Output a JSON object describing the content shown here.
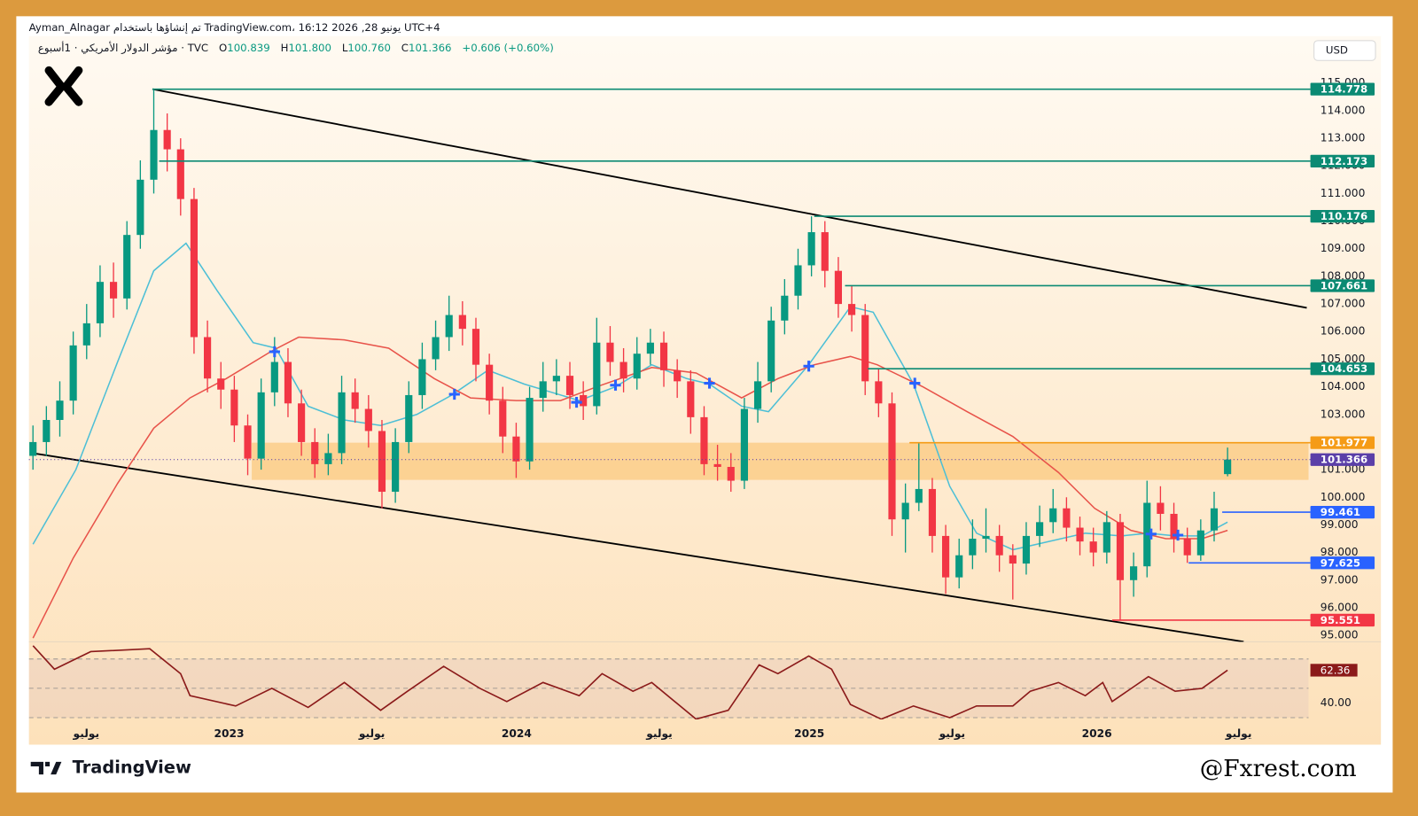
{
  "header": {
    "author_line": "Ayman_Alnagar تم إنشاؤها باستخدام TradingView.com، 16:12 2026 ,28 يونيو UTC+4",
    "symbol": "مؤشر الدولار الأمريكي · 1أسبوع · TVC",
    "ohlc_labels": [
      "O",
      "H",
      "L",
      "C"
    ],
    "ohlc_values": [
      "100.839",
      "101.800",
      "100.760",
      "101.366"
    ],
    "change": "+0.606 (+0.60%)",
    "currency": "USD"
  },
  "footer": {
    "brand": "TradingView",
    "watermark": "@Fxrest.com"
  },
  "chart_data": [
    {
      "type": "candlestick",
      "up_color": "#089981",
      "down_color": "#f23645",
      "xlim": [
        -0.3,
        94.9
      ],
      "ylim": [
        94.8,
        116.7
      ],
      "yticks": [
        {
          "value": 95,
          "label": "95.000"
        },
        {
          "value": 96,
          "label": "96.000"
        },
        {
          "value": 97,
          "label": "97.000"
        },
        {
          "value": 98,
          "label": "98.000"
        },
        {
          "value": 99,
          "label": "99.000"
        },
        {
          "value": 100,
          "label": "100.000"
        },
        {
          "value": 101,
          "label": "101.000"
        },
        {
          "value": 102,
          "label": "102.000"
        },
        {
          "value": 103,
          "label": "103.000"
        },
        {
          "value": 104,
          "label": "104.000"
        },
        {
          "value": 105,
          "label": "105.000"
        },
        {
          "value": 106,
          "label": "106.000"
        },
        {
          "value": 107,
          "label": "107.000"
        },
        {
          "value": 108,
          "label": "108.000"
        },
        {
          "value": 109,
          "label": "109.000"
        },
        {
          "value": 110,
          "label": "110.000"
        },
        {
          "value": 111,
          "label": "111.000"
        },
        {
          "value": 112,
          "label": "112.000"
        },
        {
          "value": 113,
          "label": "113.000"
        },
        {
          "value": 114,
          "label": "114.000"
        },
        {
          "value": 115,
          "label": "115.000"
        }
      ],
      "candles": [
        [
          101.5,
          102.6,
          101.0,
          102.0
        ],
        [
          102.0,
          103.3,
          101.5,
          102.8
        ],
        [
          102.8,
          104.2,
          102.2,
          103.5
        ],
        [
          103.5,
          106.0,
          103.0,
          105.5
        ],
        [
          105.5,
          107.0,
          105.0,
          106.3
        ],
        [
          106.3,
          108.4,
          105.8,
          107.8
        ],
        [
          107.8,
          108.5,
          106.5,
          107.2
        ],
        [
          107.2,
          110.0,
          106.8,
          109.5
        ],
        [
          109.5,
          112.2,
          109.0,
          111.5
        ],
        [
          111.5,
          114.778,
          111.0,
          113.3
        ],
        [
          113.3,
          113.9,
          111.8,
          112.6
        ],
        [
          112.6,
          113.0,
          110.2,
          110.8
        ],
        [
          110.8,
          111.2,
          105.2,
          105.8
        ],
        [
          105.8,
          106.4,
          103.8,
          104.3
        ],
        [
          104.3,
          104.9,
          103.2,
          103.9
        ],
        [
          103.9,
          104.4,
          102.0,
          102.6
        ],
        [
          102.6,
          103.0,
          100.8,
          101.4
        ],
        [
          101.4,
          104.3,
          101.0,
          103.8
        ],
        [
          103.8,
          105.8,
          103.3,
          104.9
        ],
        [
          104.9,
          105.4,
          102.9,
          103.4
        ],
        [
          103.4,
          103.9,
          101.5,
          102.0
        ],
        [
          102.0,
          102.5,
          100.7,
          101.2
        ],
        [
          101.2,
          102.3,
          100.8,
          101.6
        ],
        [
          101.6,
          104.4,
          101.2,
          103.8
        ],
        [
          103.8,
          104.3,
          102.7,
          103.2
        ],
        [
          103.2,
          103.7,
          101.8,
          102.4
        ],
        [
          102.4,
          102.8,
          99.6,
          100.2
        ],
        [
          100.2,
          102.5,
          99.8,
          102.0
        ],
        [
          102.0,
          104.2,
          101.6,
          103.7
        ],
        [
          103.7,
          105.6,
          103.2,
          105.0
        ],
        [
          105.0,
          106.4,
          104.6,
          105.8
        ],
        [
          105.8,
          107.3,
          105.3,
          106.6
        ],
        [
          106.6,
          107.1,
          105.5,
          106.1
        ],
        [
          106.1,
          106.5,
          104.2,
          104.8
        ],
        [
          104.8,
          105.2,
          103.0,
          103.5
        ],
        [
          103.5,
          104.0,
          101.6,
          102.2
        ],
        [
          102.2,
          102.7,
          100.7,
          101.3
        ],
        [
          101.3,
          104.0,
          101.0,
          103.6
        ],
        [
          103.6,
          104.9,
          103.1,
          104.2
        ],
        [
          104.2,
          105.0,
          103.7,
          104.4
        ],
        [
          104.4,
          104.9,
          103.2,
          103.7
        ],
        [
          103.7,
          104.2,
          102.8,
          103.3
        ],
        [
          103.3,
          106.5,
          103.0,
          105.6
        ],
        [
          105.6,
          106.2,
          104.4,
          104.9
        ],
        [
          104.9,
          105.4,
          103.8,
          104.3
        ],
        [
          104.3,
          105.8,
          103.9,
          105.2
        ],
        [
          105.2,
          106.1,
          104.8,
          105.6
        ],
        [
          105.6,
          106.0,
          104.0,
          104.6
        ],
        [
          104.6,
          105.0,
          103.6,
          104.2
        ],
        [
          104.2,
          104.6,
          102.3,
          102.9
        ],
        [
          102.9,
          103.3,
          100.8,
          101.2
        ],
        [
          101.2,
          101.9,
          100.6,
          101.1
        ],
        [
          101.1,
          101.6,
          100.2,
          100.6
        ],
        [
          100.6,
          103.6,
          100.3,
          103.2
        ],
        [
          103.2,
          104.9,
          102.7,
          104.2
        ],
        [
          104.2,
          106.9,
          103.8,
          106.4
        ],
        [
          106.4,
          107.9,
          105.9,
          107.3
        ],
        [
          107.3,
          109.0,
          106.8,
          108.4
        ],
        [
          108.4,
          110.176,
          108.0,
          109.6
        ],
        [
          109.6,
          110.0,
          107.6,
          108.2
        ],
        [
          108.2,
          108.7,
          106.5,
          107.0
        ],
        [
          107.0,
          107.661,
          106.0,
          106.6
        ],
        [
          106.6,
          107.0,
          103.7,
          104.2
        ],
        [
          104.2,
          104.653,
          102.9,
          103.4
        ],
        [
          103.4,
          103.8,
          98.6,
          99.2
        ],
        [
          99.2,
          100.5,
          98.0,
          99.8
        ],
        [
          99.8,
          101.977,
          99.5,
          100.3
        ],
        [
          100.3,
          100.7,
          98.0,
          98.6
        ],
        [
          98.6,
          99.0,
          96.5,
          97.1
        ],
        [
          97.1,
          98.5,
          96.7,
          97.9
        ],
        [
          97.9,
          99.2,
          97.4,
          98.5
        ],
        [
          98.5,
          99.6,
          98.0,
          98.6
        ],
        [
          98.6,
          99.0,
          97.3,
          97.9
        ],
        [
          97.9,
          98.3,
          96.3,
          97.6
        ],
        [
          97.6,
          99.1,
          97.2,
          98.6
        ],
        [
          98.6,
          99.7,
          98.2,
          99.1
        ],
        [
          99.1,
          100.3,
          98.7,
          99.6
        ],
        [
          99.6,
          100.0,
          98.4,
          98.9
        ],
        [
          98.9,
          99.3,
          97.9,
          98.4
        ],
        [
          98.4,
          98.9,
          97.5,
          98.0
        ],
        [
          98.0,
          99.5,
          97.6,
          99.1
        ],
        [
          99.1,
          99.4,
          95.551,
          97.0
        ],
        [
          97.0,
          98.0,
          96.4,
          97.5
        ],
        [
          97.5,
          100.6,
          97.1,
          99.8
        ],
        [
          99.8,
          100.4,
          98.8,
          99.4
        ],
        [
          99.4,
          99.8,
          98.0,
          98.5
        ],
        [
          98.5,
          98.9,
          97.625,
          97.9
        ],
        [
          97.9,
          99.2,
          97.7,
          98.8
        ],
        [
          98.8,
          100.2,
          98.4,
          99.6
        ],
        [
          100.839,
          101.8,
          100.76,
          101.366
        ]
      ],
      "lines": [
        {
          "color": "#4cbfd6",
          "x": [
            0,
            3.2,
            6.3,
            9.0,
            11.4,
            13.7,
            16.4,
            18.1,
            20.5,
            23.2,
            25.9,
            28.6,
            31.2,
            33.9,
            36.6,
            40.7,
            43.4,
            46.1,
            48.7,
            50.4,
            52.8,
            54.8,
            57.8,
            60.9,
            62.6,
            65.6,
            68.3,
            70.3,
            73.0,
            75.7,
            78.4,
            81.1,
            83.1,
            85.1,
            87.1,
            89.0
          ],
          "values": [
            98.3,
            101.0,
            104.9,
            108.2,
            109.2,
            107.5,
            105.6,
            105.4,
            103.3,
            102.8,
            102.6,
            103.0,
            103.7,
            104.6,
            104.1,
            103.5,
            104.0,
            104.8,
            104.3,
            104.1,
            103.3,
            103.1,
            104.8,
            106.9,
            106.7,
            104.1,
            100.4,
            98.7,
            98.1,
            98.4,
            98.7,
            98.6,
            98.7,
            98.6,
            98.6,
            99.1
          ]
        },
        {
          "color": "#e8534a",
          "x": [
            0,
            3.0,
            6.3,
            9.0,
            11.7,
            14.4,
            17.8,
            19.8,
            23.2,
            26.5,
            29.9,
            32.6,
            36.0,
            39.3,
            42.0,
            46.1,
            49.4,
            52.8,
            55.5,
            58.2,
            60.9,
            62.9,
            66.3,
            69.6,
            73.0,
            76.4,
            79.1,
            81.8,
            84.4,
            87.1,
            89.0
          ],
          "values": [
            94.9,
            97.8,
            100.5,
            102.5,
            103.6,
            104.3,
            105.3,
            105.8,
            105.7,
            105.4,
            104.3,
            103.6,
            103.5,
            103.5,
            104.0,
            104.7,
            104.5,
            103.6,
            104.3,
            104.8,
            105.1,
            104.8,
            104.0,
            103.1,
            102.2,
            100.9,
            99.6,
            98.8,
            98.5,
            98.5,
            98.8
          ]
        }
      ],
      "crosses": {
        "color": "#2962ff",
        "x": [
          18.0,
          31.4,
          40.5,
          43.4,
          50.4,
          57.8,
          65.7,
          83.3,
          85.3
        ],
        "values": [
          105.27,
          103.73,
          103.44,
          104.06,
          104.13,
          104.75,
          104.13,
          98.67,
          98.63
        ]
      },
      "trendlines": [
        {
          "x": [
            8.9,
            94.9
          ],
          "values": [
            114.778,
            106.86
          ]
        },
        {
          "x": [
            -0.2,
            90.2
          ],
          "values": [
            101.61,
            94.77
          ]
        }
      ],
      "zone": {
        "x": 16.3,
        "values": [
          100.63,
          101.977
        ],
        "color": "#fbc97f"
      },
      "levels": [
        {
          "value": 114.778,
          "x": 8.9,
          "color": "#0b8a73"
        },
        {
          "value": 112.173,
          "x": 9.4,
          "color": "#0b8a73"
        },
        {
          "value": 110.176,
          "x": 58.2,
          "color": "#0b8a73"
        },
        {
          "value": 107.661,
          "x": 60.5,
          "color": "#0b8a73"
        },
        {
          "value": 104.653,
          "x": 62.2,
          "color": "#0b8a73"
        },
        {
          "value": 101.977,
          "x": 65.3,
          "color": "#f59b16"
        },
        {
          "value": 101.366,
          "x": -0.3,
          "color": "#5b3fa8",
          "dotted": true
        },
        {
          "value": 99.461,
          "x": 88.6,
          "color": "#2962ff"
        },
        {
          "value": 97.625,
          "x": 86.1,
          "color": "#2962ff"
        },
        {
          "value": 95.551,
          "x": 80.4,
          "color": "#f23645"
        }
      ]
    },
    {
      "type": "line",
      "color": "#8b1a1a",
      "xlim": [
        -0.3,
        94.9
      ],
      "ylim": [
        28.8,
        80.5
      ],
      "yticks": [
        {
          "value": 40,
          "label": "40.00"
        }
      ],
      "levels": [
        30,
        50,
        70
      ],
      "xticks": [
        {
          "value": 3.97,
          "label": "يوليو"
        },
        {
          "value": 14.61,
          "label": "2023"
        },
        {
          "value": 25.25,
          "label": "يوليو"
        },
        {
          "value": 36.03,
          "label": "2024"
        },
        {
          "value": 46.67,
          "label": "يوليو"
        },
        {
          "value": 57.84,
          "label": "2025"
        },
        {
          "value": 68.48,
          "label": "يوليو"
        },
        {
          "value": 79.26,
          "label": "2026"
        },
        {
          "value": 89.83,
          "label": "يوليو"
        }
      ],
      "x": [
        0,
        1.6,
        4.3,
        8.7,
        11.0,
        11.7,
        15.1,
        17.8,
        20.5,
        23.2,
        25.9,
        27.9,
        30.6,
        33.3,
        35.3,
        38.0,
        40.7,
        42.4,
        44.7,
        46.1,
        49.4,
        51.8,
        54.1,
        55.5,
        57.8,
        59.5,
        60.9,
        63.2,
        65.6,
        68.3,
        70.3,
        73.0,
        74.3,
        76.4,
        78.4,
        79.7,
        80.4,
        83.1,
        85.1,
        87.1,
        89.0
      ],
      "values": [
        79,
        63,
        75,
        77,
        60,
        45,
        38,
        50,
        37,
        54,
        35,
        48,
        65,
        50,
        41,
        54,
        45,
        60,
        48,
        54,
        29,
        35,
        66,
        60,
        72,
        63,
        39,
        29,
        38,
        30,
        38,
        38,
        48,
        54,
        45,
        54,
        41,
        58,
        48,
        50,
        62.36
      ]
    }
  ]
}
